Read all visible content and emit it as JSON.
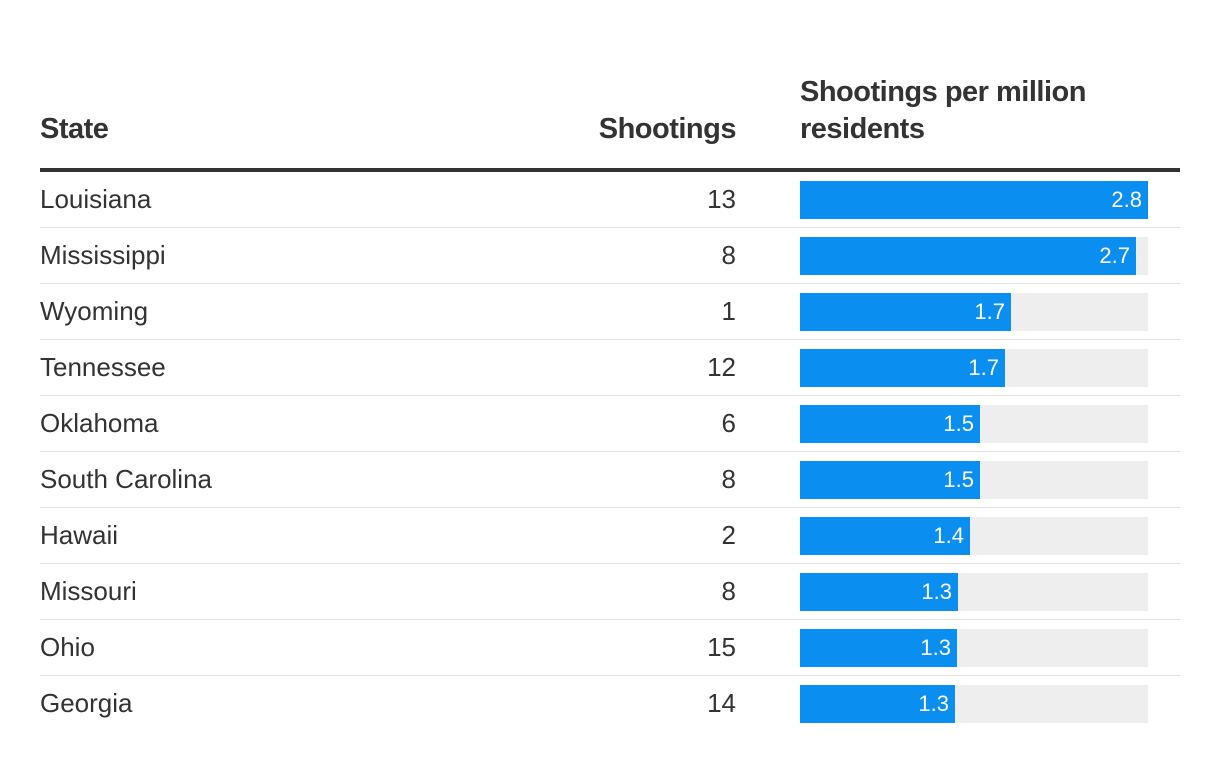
{
  "chart_data": {
    "type": "table",
    "columns": [
      "State",
      "Shootings",
      "Shootings per million residents"
    ],
    "max": 2.8,
    "rows": [
      {
        "state": "Louisiana",
        "shootings": "13",
        "rate": 2.8,
        "rate_label": "2.8"
      },
      {
        "state": "Mississippi",
        "shootings": "8",
        "rate": 2.7,
        "rate_label": "2.7"
      },
      {
        "state": "Wyoming",
        "shootings": "1",
        "rate": 1.7,
        "rate_label": "1.7"
      },
      {
        "state": "Tennessee",
        "shootings": "12",
        "rate": 1.65,
        "rate_label": "1.7"
      },
      {
        "state": "Oklahoma",
        "shootings": "6",
        "rate": 1.45,
        "rate_label": "1.5"
      },
      {
        "state": "South Carolina",
        "shootings": "8",
        "rate": 1.45,
        "rate_label": "1.5"
      },
      {
        "state": "Hawaii",
        "shootings": "2",
        "rate": 1.37,
        "rate_label": "1.4"
      },
      {
        "state": "Missouri",
        "shootings": "8",
        "rate": 1.27,
        "rate_label": "1.3"
      },
      {
        "state": "Ohio",
        "shootings": "15",
        "rate": 1.26,
        "rate_label": "1.3"
      },
      {
        "state": "Georgia",
        "shootings": "14",
        "rate": 1.25,
        "rate_label": "1.3"
      }
    ],
    "bar_color": "#0a8ef0",
    "track_color": "#eeeeee"
  }
}
